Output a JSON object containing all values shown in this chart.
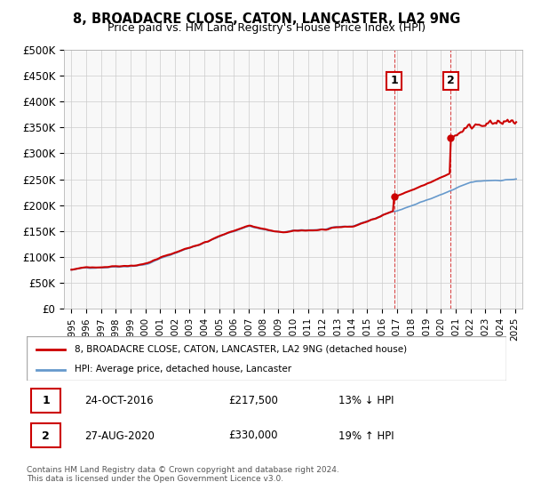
{
  "title": "8, BROADACRE CLOSE, CATON, LANCASTER, LA2 9NG",
  "subtitle": "Price paid vs. HM Land Registry's House Price Index (HPI)",
  "property_label": "8, BROADACRE CLOSE, CATON, LANCASTER, LA2 9NG (detached house)",
  "hpi_label": "HPI: Average price, detached house, Lancaster",
  "annotation1": {
    "num": "1",
    "date": "24-OCT-2016",
    "price": "£217,500",
    "pct": "13% ↓ HPI"
  },
  "annotation2": {
    "num": "2",
    "date": "27-AUG-2020",
    "price": "£330,000",
    "pct": "19% ↑ HPI"
  },
  "footer": "Contains HM Land Registry data © Crown copyright and database right 2024.\nThis data is licensed under the Open Government Licence v3.0.",
  "property_color": "#cc0000",
  "hpi_color": "#6699cc",
  "vline_color": "#cc0000",
  "background_color": "#ffffff",
  "grid_color": "#cccccc",
  "sale1_x": 2016.82,
  "sale1_y": 217500,
  "sale2_x": 2020.66,
  "sale2_y": 330000,
  "ylim": [
    0,
    500000
  ],
  "yticks": [
    0,
    50000,
    100000,
    150000,
    200000,
    250000,
    300000,
    350000,
    400000,
    450000,
    500000
  ],
  "xlim": [
    1994.5,
    2025.5
  ],
  "xticks": [
    1995,
    1996,
    1997,
    1998,
    1999,
    2000,
    2001,
    2002,
    2003,
    2004,
    2005,
    2006,
    2007,
    2008,
    2009,
    2010,
    2011,
    2012,
    2013,
    2014,
    2015,
    2016,
    2017,
    2018,
    2019,
    2020,
    2021,
    2022,
    2023,
    2024,
    2025
  ]
}
